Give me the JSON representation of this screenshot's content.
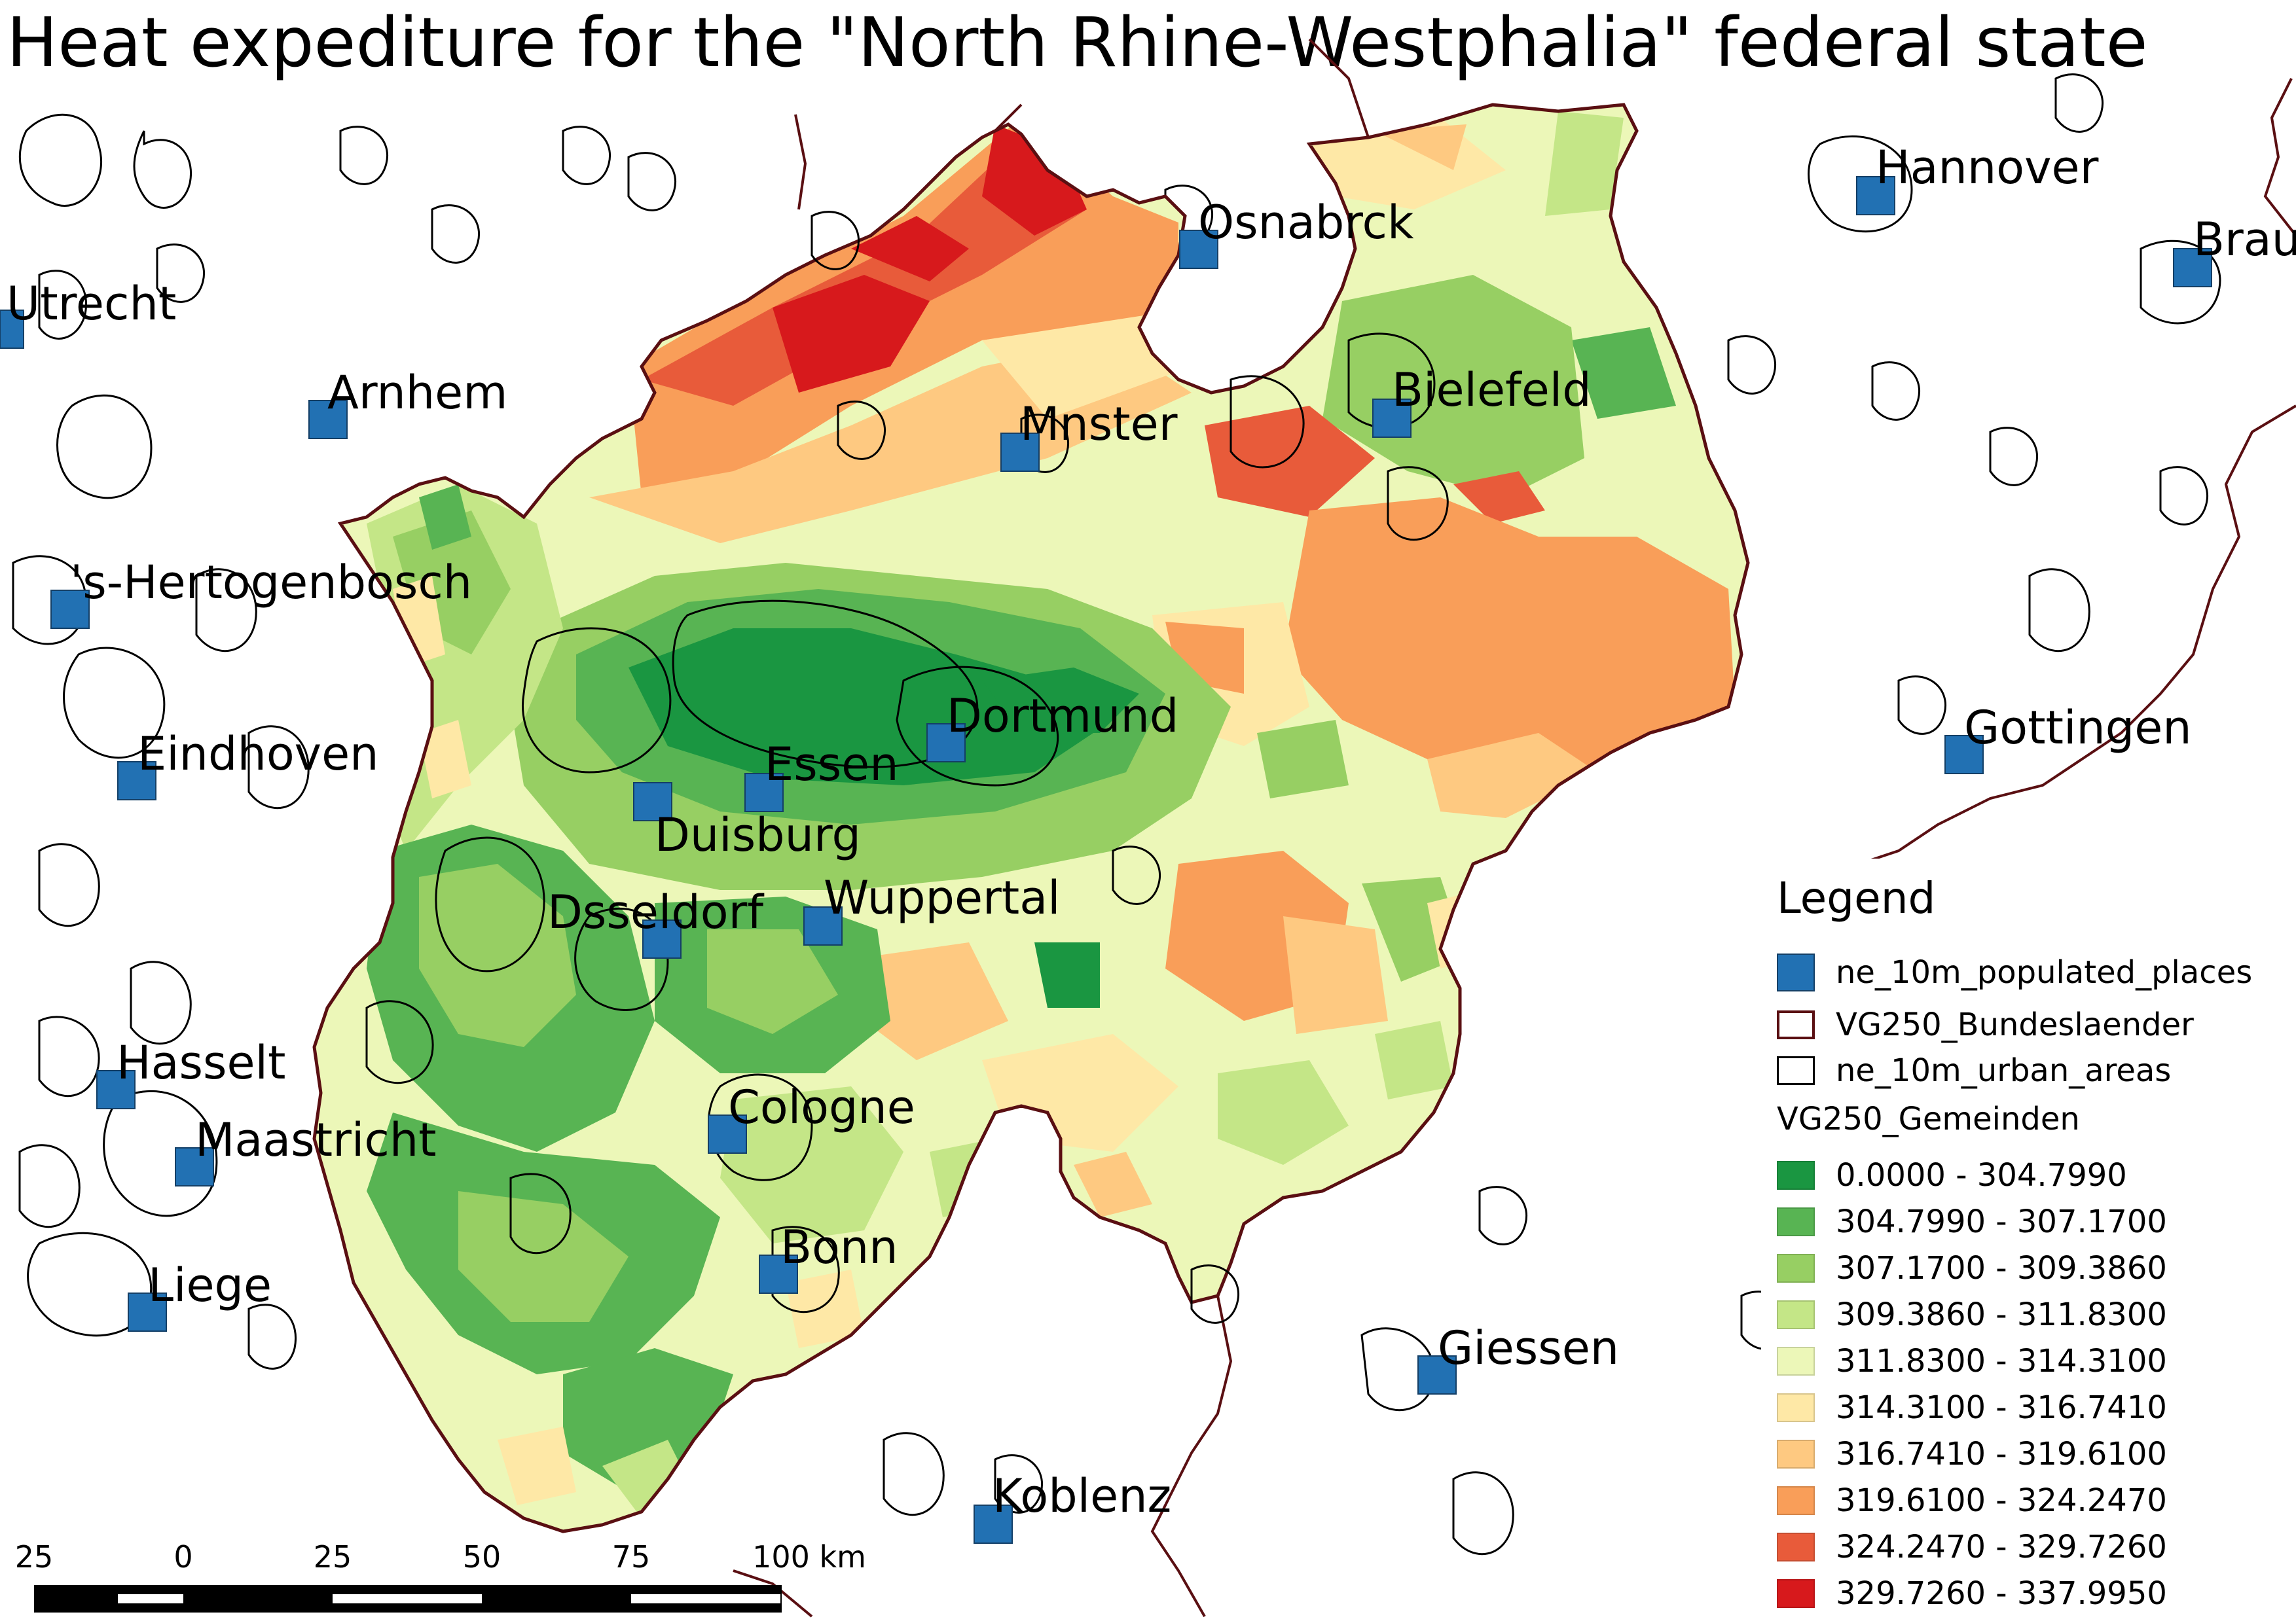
{
  "title": "Heat expediture for the \"North Rhine-Westphalia\" federal state",
  "places": [
    {
      "name": "Hannover"
    },
    {
      "name": "Osnabrck"
    },
    {
      "name": "Brau"
    },
    {
      "name": "Utrecht"
    },
    {
      "name": "Arnhem"
    },
    {
      "name": "Bielefeld"
    },
    {
      "name": "Mnster"
    },
    {
      "name": "'s-Hertogenbosch"
    },
    {
      "name": "Dortmund"
    },
    {
      "name": "Gottingen"
    },
    {
      "name": "Eindhoven"
    },
    {
      "name": "Essen"
    },
    {
      "name": "Duisburg"
    },
    {
      "name": "Wuppertal"
    },
    {
      "name": "Dsseldorf"
    },
    {
      "name": "Hasselt"
    },
    {
      "name": "Maastricht"
    },
    {
      "name": "Cologne"
    },
    {
      "name": "Bonn"
    },
    {
      "name": "Liege"
    },
    {
      "name": "Giessen"
    },
    {
      "name": "Koblenz"
    }
  ],
  "legend": {
    "title": "Legend",
    "layers": [
      {
        "label": "ne_10m_populated_places",
        "symbol": "filled-square",
        "color": "#2271b3"
      },
      {
        "label": "VG250_Bundeslaender",
        "symbol": "outline",
        "color": "#5a0f12"
      },
      {
        "label": "ne_10m_urban_areas",
        "symbol": "outline",
        "color": "#000000"
      }
    ],
    "classes_title": "VG250_Gemeinden",
    "classes": [
      {
        "label": "0.0000 - 304.7990",
        "color": "#1a9641"
      },
      {
        "label": "304.7990 - 307.1700",
        "color": "#58b453"
      },
      {
        "label": "307.1700 - 309.3860",
        "color": "#97cf63"
      },
      {
        "label": "309.3860 - 311.8300",
        "color": "#c4e687"
      },
      {
        "label": "311.8300 - 314.3100",
        "color": "#ecf7b8"
      },
      {
        "label": "314.3100 - 316.7410",
        "color": "#fee8a6"
      },
      {
        "label": "316.7410 - 319.6100",
        "color": "#fec981"
      },
      {
        "label": "319.6100 - 324.2470",
        "color": "#f99e59"
      },
      {
        "label": "324.2470 - 329.7260",
        "color": "#e85b3a"
      },
      {
        "label": "329.7260 - 337.9950",
        "color": "#d7191c"
      }
    ]
  },
  "scale_bar": {
    "ticks": [
      "25",
      "0",
      "25",
      "50",
      "75",
      "100 km"
    ]
  }
}
